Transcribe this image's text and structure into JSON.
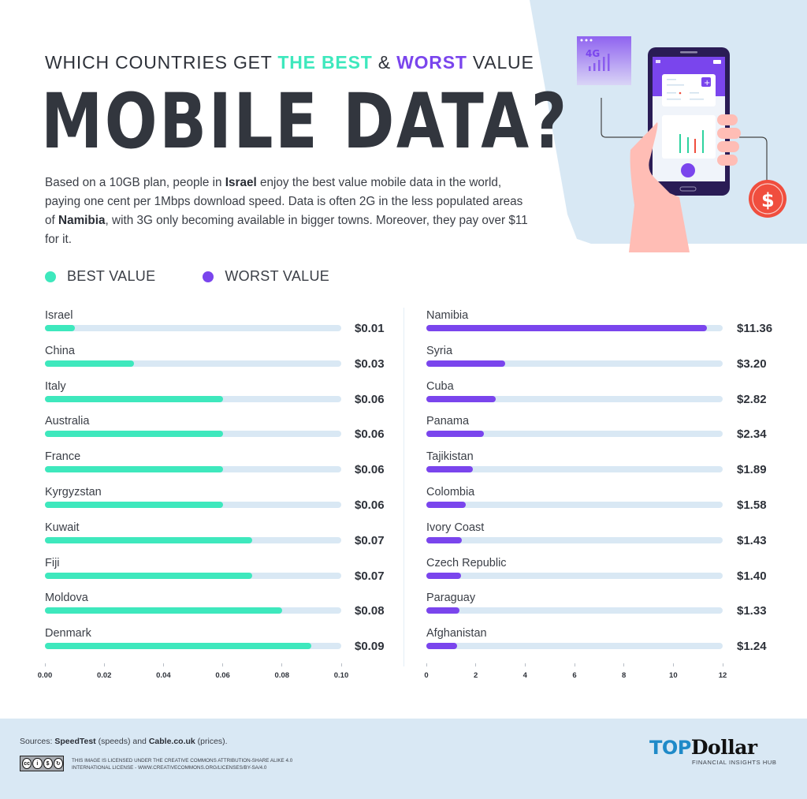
{
  "header": {
    "subtitle_prefix": "WHICH COUNTRIES GET ",
    "subtitle_best": "THE BEST",
    "subtitle_amp": " & ",
    "subtitle_worst": "WORST",
    "subtitle_suffix": " VALUE",
    "title": "MOBILE DATA?",
    "description": {
      "p1": "Based on a 10GB plan, people in ",
      "b1": "Israel",
      "p2": " enjoy the best value mobile data in the world, paying one cent per 1Mbps download speed. Data is often 2G in the less populated areas of ",
      "b2": "Namibia",
      "p3": ", with 3G only becoming available in bigger towns. Moreover, they pay over $11 for it."
    }
  },
  "illustration": {
    "badge_text": "4G",
    "coin_symbol": "$"
  },
  "legend": {
    "best_label": "BEST VALUE",
    "worst_label": "WORST VALUE"
  },
  "colors": {
    "best": "#3ee8bd",
    "worst": "#7a45ed",
    "track": "#d9e8f4",
    "text": "#2e323a",
    "hero_bg": "#d8e8f4",
    "coin": "#f04e3e",
    "logo_blue": "#1f8ac8"
  },
  "chart_data": [
    {
      "type": "bar",
      "orientation": "horizontal",
      "title": "Best Value",
      "unit": "USD per 1Mbps",
      "categories": [
        "Israel",
        "China",
        "Italy",
        "Australia",
        "France",
        "Kyrgyzstan",
        "Kuwait",
        "Fiji",
        "Moldova",
        "Denmark"
      ],
      "values": [
        0.01,
        0.03,
        0.06,
        0.06,
        0.06,
        0.06,
        0.07,
        0.07,
        0.08,
        0.09
      ],
      "value_labels": [
        "$0.01",
        "$0.03",
        "$0.06",
        "$0.06",
        "$0.06",
        "$0.06",
        "$0.07",
        "$0.07",
        "$0.08",
        "$0.09"
      ],
      "xlim": [
        0,
        0.1
      ],
      "xticks": [
        "0.00",
        "0.02",
        "0.04",
        "0.06",
        "0.08",
        "0.10"
      ],
      "color": "#3ee8bd"
    },
    {
      "type": "bar",
      "orientation": "horizontal",
      "title": "Worst Value",
      "unit": "USD per 1Mbps",
      "categories": [
        "Namibia",
        "Syria",
        "Cuba",
        "Panama",
        "Tajikistan",
        "Colombia",
        "Ivory Coast",
        "Czech Republic",
        "Paraguay",
        "Afghanistan"
      ],
      "values": [
        11.36,
        3.2,
        2.82,
        2.34,
        1.89,
        1.58,
        1.43,
        1.4,
        1.33,
        1.24
      ],
      "value_labels": [
        "$11.36",
        "$3.20",
        "$2.82",
        "$2.34",
        "$1.89",
        "$1.58",
        "$1.43",
        "$1.40",
        "$1.33",
        "$1.24"
      ],
      "xlim": [
        0,
        12
      ],
      "xticks": [
        "0",
        "2",
        "4",
        "6",
        "8",
        "10",
        "12"
      ],
      "color": "#7a45ed"
    }
  ],
  "footer": {
    "sources_prefix": "Sources: ",
    "source1": "SpeedTest",
    "source1_note": " (speeds) and ",
    "source2": "Cable.co.uk",
    "source2_note": " (prices).",
    "license_line1": "THIS IMAGE IS LICENSED UNDER THE CREATIVE COMMONS ATTRIBUTION-SHARE ALIKE 4.0",
    "license_line2": "INTERNATIONAL LICENSE - WWW.CREATIVECOMMONS.ORG/LICENSES/BY-SA/4.0",
    "cc_badge": "cc",
    "logo_top": "TOP",
    "logo_dollar": "Dollar",
    "logo_tagline": "FINANCIAL INSIGHTS HUB"
  }
}
